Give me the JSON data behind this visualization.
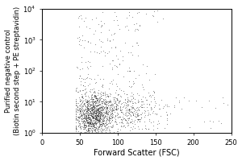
{
  "xlabel": "Forward Scatter (FSC)",
  "ylabel_line1": "Purified negative control",
  "ylabel_line2": "(Biotin second step + PE streptavidin)",
  "xlim": [
    0,
    250
  ],
  "ylim_log": [
    1,
    10000
  ],
  "xticks": [
    0,
    50,
    100,
    150,
    200,
    250
  ],
  "yticks_log": [
    1,
    10,
    100,
    1000,
    10000
  ],
  "bg_color": "#ffffff",
  "plot_bg_color": "#ffffff",
  "dot_color": "#111111",
  "dot_alpha": 0.5,
  "dot_size": 0.6,
  "seed": 42,
  "xlabel_fontsize": 7,
  "ylabel_fontsize": 6.0,
  "tick_fontsize": 6,
  "figsize": [
    3.0,
    2.0
  ],
  "dpi": 100
}
